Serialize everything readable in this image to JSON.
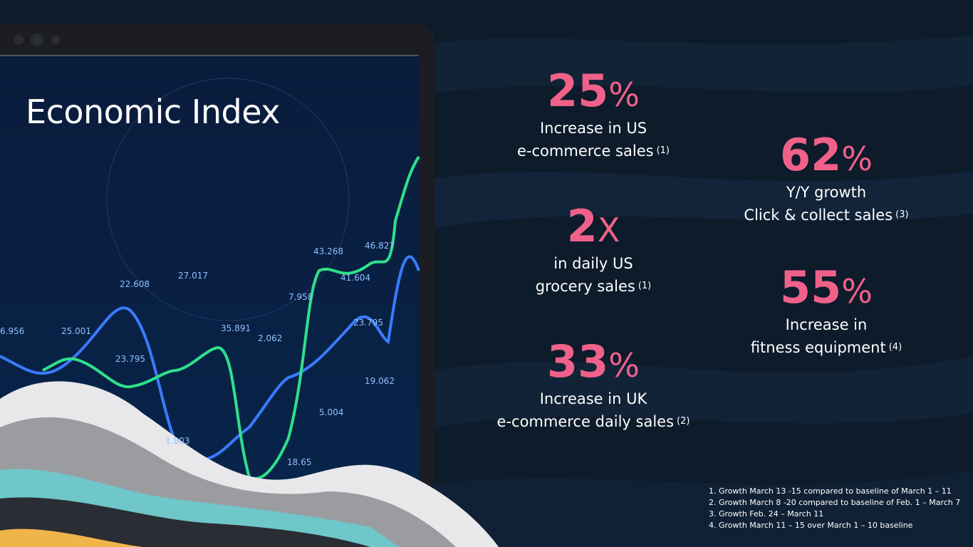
{
  "slide": {
    "title": "Economic Index",
    "screen_labels": [
      "6.956",
      "25.001",
      "23.795",
      "22.608",
      "27.017",
      "35.891",
      "2.062",
      "7.958",
      "43.268",
      "41.604",
      "46.827",
      "23.795",
      "19.062",
      "5.004",
      "18.65",
      "1.803"
    ],
    "stats": [
      {
        "value": "25",
        "unit": "%",
        "lines": [
          "Increase in US",
          "e-commerce sales"
        ],
        "note": "(1)"
      },
      {
        "value": "2",
        "unit": "X",
        "lines": [
          "in daily US",
          "grocery sales"
        ],
        "note": "(1)"
      },
      {
        "value": "33",
        "unit": "%",
        "lines": [
          "Increase in UK",
          "e-commerce daily sales"
        ],
        "note": "(2)"
      },
      {
        "value": "62",
        "unit": "%",
        "lines": [
          "Y/Y growth",
          "Click & collect sales"
        ],
        "note": "(3)"
      },
      {
        "value": "55",
        "unit": "%",
        "lines": [
          "Increase in",
          "fitness equipment"
        ],
        "note": "(4)"
      }
    ],
    "footnotes": [
      "1. Growth March 13 -15 compared to baseline of March 1 – 11",
      "2. Growth March 8 -20 compared to baseline of Feb. 1 – March 7",
      "3. Growth Feb. 24 – March 11",
      "4. Growth March 11 – 15 over March 1 – 10 baseline"
    ]
  }
}
